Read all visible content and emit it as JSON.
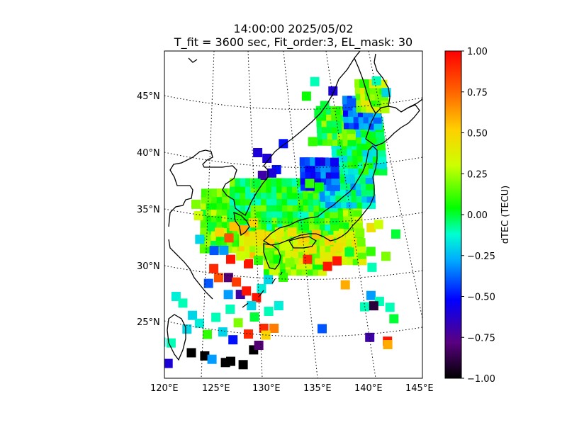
{
  "title": {
    "line1": "14:00:00 2025/05/02",
    "line2": "T_fit = 3600 sec, Fit_order:3, EL_mask: 30"
  },
  "map": {
    "lat_labels": [
      "45°N",
      "40°N",
      "35°N",
      "30°N",
      "25°N"
    ],
    "lon_labels": [
      "120°E",
      "125°E",
      "130°E",
      "135°E",
      "140°E",
      "145°E"
    ],
    "grid": "dotted",
    "coastlines": "black",
    "dtec_cells": [
      {
        "lon": 121.0,
        "lat": 21.5,
        "v": -0.7
      },
      {
        "lon": 122.3,
        "lat": 21.5,
        "v": -0.6
      },
      {
        "lon": 124.5,
        "lat": 22.4,
        "v": -1.0
      },
      {
        "lon": 125.8,
        "lat": 22.1,
        "v": -1.0
      },
      {
        "lon": 127.8,
        "lat": 21.5,
        "v": -1.0
      },
      {
        "lon": 130.5,
        "lat": 22.6,
        "v": -1.0
      },
      {
        "lon": 126.5,
        "lat": 21.8,
        "v": -0.3
      },
      {
        "lon": 128.5,
        "lat": 23.5,
        "v": -0.5
      },
      {
        "lon": 131.0,
        "lat": 23.0,
        "v": -0.8
      },
      {
        "lon": 121.5,
        "lat": 23.4,
        "v": -0.2
      },
      {
        "lon": 122.5,
        "lat": 23.3,
        "v": -0.1
      },
      {
        "lon": 124.0,
        "lat": 24.5,
        "v": -0.2
      },
      {
        "lon": 121.2,
        "lat": 25.6,
        "v": -0.5
      },
      {
        "lon": 122.8,
        "lat": 27.4,
        "v": -0.15
      },
      {
        "lon": 123.5,
        "lat": 26.8,
        "v": -0.1
      },
      {
        "lon": 124.5,
        "lat": 25.7,
        "v": -0.2
      },
      {
        "lon": 125.2,
        "lat": 25.0,
        "v": -0.15
      },
      {
        "lon": 126.0,
        "lat": 24.0,
        "v": 0.1
      },
      {
        "lon": 126.8,
        "lat": 25.5,
        "v": -0.1
      },
      {
        "lon": 127.5,
        "lat": 24.2,
        "v": -0.2
      },
      {
        "lon": 128.2,
        "lat": 26.2,
        "v": -0.1
      },
      {
        "lon": 129.0,
        "lat": 25.0,
        "v": 0.2
      },
      {
        "lon": 130.0,
        "lat": 24.0,
        "v": 0.9
      },
      {
        "lon": 131.5,
        "lat": 24.5,
        "v": 0.9
      },
      {
        "lon": 132.5,
        "lat": 24.5,
        "v": 0.7
      },
      {
        "lon": 131.7,
        "lat": 23.9,
        "v": 0.5
      },
      {
        "lon": 130.6,
        "lat": 25.5,
        "v": 0.0
      },
      {
        "lon": 132.0,
        "lat": 26.0,
        "v": -0.1
      },
      {
        "lon": 133.0,
        "lat": 26.5,
        "v": -0.15
      },
      {
        "lon": 126.0,
        "lat": 28.5,
        "v": -0.4
      },
      {
        "lon": 127.0,
        "lat": 29.0,
        "v": 0.8
      },
      {
        "lon": 126.5,
        "lat": 29.8,
        "v": 0.9
      },
      {
        "lon": 128.0,
        "lat": 29.0,
        "v": -0.8
      },
      {
        "lon": 128.8,
        "lat": 28.6,
        "v": 0.85
      },
      {
        "lon": 129.2,
        "lat": 27.5,
        "v": -0.7
      },
      {
        "lon": 128.0,
        "lat": 27.5,
        "v": -0.3
      },
      {
        "lon": 129.8,
        "lat": 27.8,
        "v": 0.95
      },
      {
        "lon": 130.8,
        "lat": 27.2,
        "v": 0.95
      },
      {
        "lon": 130.3,
        "lat": 26.5,
        "v": -0.2
      },
      {
        "lon": 131.3,
        "lat": 28.0,
        "v": -0.15
      },
      {
        "lon": 132.0,
        "lat": 28.8,
        "v": -0.2
      },
      {
        "lon": 133.5,
        "lat": 29.0,
        "v": 0.1
      },
      {
        "lon": 130.0,
        "lat": 30.2,
        "v": 0.95
      },
      {
        "lon": 128.2,
        "lat": 30.6,
        "v": 0.95
      },
      {
        "lon": 129.2,
        "lat": 30.9,
        "v": 0.3
      },
      {
        "lon": 131.0,
        "lat": 30.5,
        "v": 0.1
      },
      {
        "lon": 132.0,
        "lat": 30.9,
        "v": 0.15
      },
      {
        "lon": 133.0,
        "lat": 30.6,
        "v": 0.05
      },
      {
        "lon": 134.2,
        "lat": 30.3,
        "v": 0.2
      },
      {
        "lon": 128.0,
        "lat": 32.5,
        "v": 0.8
      },
      {
        "lon": 127.5,
        "lat": 31.4,
        "v": -0.3
      },
      {
        "lon": 126.5,
        "lat": 31.4,
        "v": -0.4
      },
      {
        "lon": 137.2,
        "lat": 24.5,
        "v": -0.4
      },
      {
        "lon": 138.0,
        "lat": 30.0,
        "v": 0.95
      },
      {
        "lon": 139.0,
        "lat": 30.5,
        "v": 0.95
      },
      {
        "lon": 136.0,
        "lat": 30.6,
        "v": 0.9
      },
      {
        "lon": 139.7,
        "lat": 28.4,
        "v": 0.6
      },
      {
        "lon": 141.5,
        "lat": 26.5,
        "v": -0.1
      },
      {
        "lon": 142.2,
        "lat": 27.5,
        "v": -0.3
      },
      {
        "lon": 143.0,
        "lat": 27.0,
        "v": -0.1
      },
      {
        "lon": 142.4,
        "lat": 26.6,
        "v": -0.9
      },
      {
        "lon": 144.0,
        "lat": 26.5,
        "v": -0.1
      },
      {
        "lon": 144.3,
        "lat": 25.5,
        "v": 0.0
      },
      {
        "lon": 141.8,
        "lat": 23.8,
        "v": -0.7
      },
      {
        "lon": 143.5,
        "lat": 23.5,
        "v": 0.95
      },
      {
        "lon": 143.5,
        "lat": 23.2,
        "v": 0.6
      },
      {
        "lon": 142.5,
        "lat": 30.0,
        "v": -0.1
      },
      {
        "lon": 144.0,
        "lat": 31.0,
        "v": 0.2
      },
      {
        "lon": 145.2,
        "lat": 33.0,
        "v": 0.0
      },
      {
        "lon": 129.5,
        "lat": 21.3,
        "v": -1.0
      },
      {
        "lon": 128.3,
        "lat": 21.6,
        "v": -1.0
      },
      {
        "lon": 131.0,
        "lat": 40.0,
        "v": -0.6
      },
      {
        "lon": 132.0,
        "lat": 39.5,
        "v": -0.6
      },
      {
        "lon": 133.0,
        "lat": 38.5,
        "v": -0.5
      },
      {
        "lon": 133.8,
        "lat": 40.8,
        "v": -0.5
      },
      {
        "lon": 132.5,
        "lat": 38.2,
        "v": -0.6
      },
      {
        "lon": 131.5,
        "lat": 38.0,
        "v": -0.7
      },
      {
        "lon": 130.8,
        "lat": 37.3,
        "v": 0.0
      },
      {
        "lon": 136.5,
        "lat": 37.3,
        "v": 0.1
      },
      {
        "lon": 137.5,
        "lat": 37.0,
        "v": 0.05
      },
      {
        "lon": 137.0,
        "lat": 41.0,
        "v": 0.1
      },
      {
        "lon": 137.8,
        "lat": 43.5,
        "v": 0.0
      },
      {
        "lon": 138.5,
        "lat": 44.2,
        "v": 0.0
      },
      {
        "lon": 136.5,
        "lat": 45.0,
        "v": 0.05
      },
      {
        "lon": 137.5,
        "lat": 46.3,
        "v": -0.1
      },
      {
        "lon": 139.5,
        "lat": 45.5,
        "v": -0.6
      },
      {
        "lon": 141.5,
        "lat": 44.5,
        "v": -0.4
      },
      {
        "lon": 144.5,
        "lat": 46.5,
        "v": -0.1
      },
      {
        "lon": 145.5,
        "lat": 45.5,
        "v": -0.2
      },
      {
        "lon": 124.5,
        "lat": 35.5,
        "v": 0.2
      },
      {
        "lon": 124.8,
        "lat": 34.5,
        "v": 0.3
      },
      {
        "lon": 125.5,
        "lat": 33.0,
        "v": 0.2
      },
      {
        "lon": 125.0,
        "lat": 32.4,
        "v": -0.2
      },
      {
        "lon": 126.2,
        "lat": 33.5,
        "v": 0.0
      },
      {
        "lon": 127.0,
        "lat": 33.0,
        "v": 0.5
      },
      {
        "lon": 128.5,
        "lat": 33.5,
        "v": 0.55
      },
      {
        "lon": 129.5,
        "lat": 33.2,
        "v": 0.6
      },
      {
        "lon": 130.5,
        "lat": 33.8,
        "v": 0.5
      },
      {
        "lon": 130.0,
        "lat": 32.2,
        "v": 0.4
      },
      {
        "lon": 131.2,
        "lat": 32.8,
        "v": 0.45
      },
      {
        "lon": 132.2,
        "lat": 32.0,
        "v": 0.5
      },
      {
        "lon": 133.2,
        "lat": 33.0,
        "v": 0.4
      },
      {
        "lon": 134.5,
        "lat": 33.0,
        "v": 0.45
      },
      {
        "lon": 135.8,
        "lat": 32.5,
        "v": 0.5
      },
      {
        "lon": 137.0,
        "lat": 32.8,
        "v": 0.55
      },
      {
        "lon": 138.3,
        "lat": 32.3,
        "v": 0.5
      },
      {
        "lon": 139.5,
        "lat": 32.5,
        "v": 0.4
      },
      {
        "lon": 140.5,
        "lat": 32.8,
        "v": 0.35
      },
      {
        "lon": 141.5,
        "lat": 33.0,
        "v": 0.2
      },
      {
        "lon": 142.7,
        "lat": 33.5,
        "v": 0.45
      },
      {
        "lon": 143.5,
        "lat": 33.8,
        "v": 0.3
      },
      {
        "lon": 139.2,
        "lat": 31.7,
        "v": 0.45
      },
      {
        "lon": 136.5,
        "lat": 31.5,
        "v": 0.45
      },
      {
        "lon": 134.0,
        "lat": 31.8,
        "v": 0.3
      },
      {
        "lon": 142.5,
        "lat": 31.4,
        "v": 0.1
      },
      {
        "lon": 140.3,
        "lat": 31.3,
        "v": 0.0
      }
    ],
    "dtec_regions": [
      {
        "lon": [
          125.5,
          141.5
        ],
        "lat": [
          31.5,
          36.5
        ],
        "v": 0.15
      },
      {
        "lon": [
          128.5,
          139.0
        ],
        "lat": [
          33.5,
          37.5
        ],
        "v": 0.05
      },
      {
        "lon": [
          138.0,
          143.0
        ],
        "lat": [
          35.5,
          39.0
        ],
        "v": -0.15
      },
      {
        "lon": [
          139.5,
          145.0
        ],
        "lat": [
          38.5,
          43.0
        ],
        "v": -0.05
      },
      {
        "lon": [
          138.0,
          141.5
        ],
        "lat": [
          41.0,
          44.0
        ],
        "v": 0.1
      },
      {
        "lon": [
          141.0,
          144.5
        ],
        "lat": [
          42.5,
          45.0
        ],
        "v": -0.35
      },
      {
        "lon": [
          142.5,
          145.5
        ],
        "lat": [
          44.0,
          46.5
        ],
        "v": 0.25
      },
      {
        "lon": [
          136.0,
          139.5
        ],
        "lat": [
          37.0,
          39.5
        ],
        "v": -0.45
      },
      {
        "lon": [
          129.5,
          134.0
        ],
        "lat": [
          31.0,
          33.0
        ],
        "v": 0.4
      },
      {
        "lon": [
          132.0,
          138.0
        ],
        "lat": [
          29.5,
          32.0
        ],
        "v": 0.2
      },
      {
        "lon": [
          135.0,
          142.0
        ],
        "lat": [
          30.5,
          32.5
        ],
        "v": 0.3
      }
    ]
  },
  "colorbar": {
    "label": "dTEC (TECU)",
    "min": -1.0,
    "max": 1.0,
    "tick_labels": [
      "1.00",
      "0.75",
      "0.50",
      "0.25",
      "0.00",
      "−0.25",
      "−0.50",
      "−0.75",
      "−1.00"
    ],
    "colormap": [
      "#000000",
      "#5a0080",
      "#0000ff",
      "#00aaff",
      "#00ffd0",
      "#00ff00",
      "#ccff00",
      "#ffd000",
      "#ff6000",
      "#ff0000"
    ]
  }
}
